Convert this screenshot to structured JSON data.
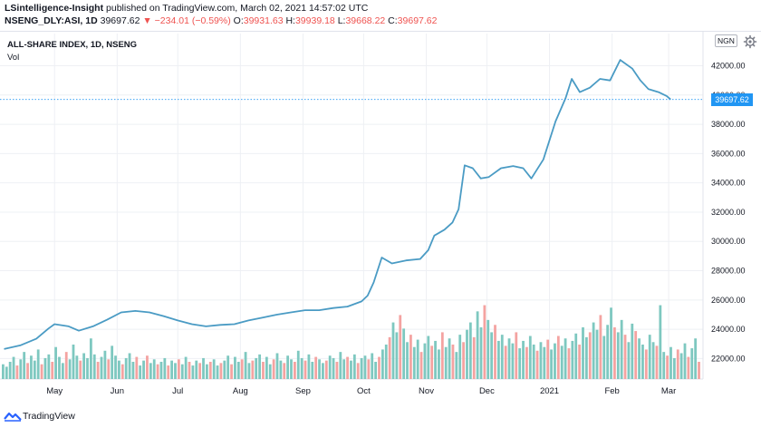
{
  "header": {
    "author": "LSintelligence-Insight",
    "published_text": "published on TradingView.com, March 02, 2021 14:57:02 UTC",
    "symbol": "NSENG_DLY:ASI, 1D",
    "last": "39697.62",
    "change": "−234.01 (−0.59%)",
    "open_label": "O:",
    "open": "39931.63",
    "high_label": "H:",
    "high": "39939.18",
    "low_label": "L:",
    "low": "39668.22",
    "close_label": "C:",
    "close": "39697.62"
  },
  "chart_title": "ALL-SHARE INDEX, 1D, NSENG",
  "vol_label": "Vol",
  "currency": "NGN",
  "price_tag": "39697.62",
  "brand": "TradingView",
  "colors": {
    "line": "#4a9bc4",
    "vol_up": "#7ec8c0",
    "vol_down": "#f4a3a1",
    "price_tag": "#2196f3",
    "grid": "#eef0f4"
  },
  "icons": [
    "gear-icon",
    "tradingview-logo-icon",
    "change-down-icon"
  ],
  "chart_data": {
    "type": "line",
    "ylim": [
      20600,
      44200
    ],
    "yticks": [
      22000,
      24000,
      26000,
      28000,
      30000,
      32000,
      34000,
      36000,
      38000,
      40000,
      42000
    ],
    "ytick_labels": [
      "22000.00",
      "24000.00",
      "26000.00",
      "28000.00",
      "30000.00",
      "32000.00",
      "34000.00",
      "36000.00",
      "38000.00",
      "40000.00",
      "42000.00"
    ],
    "xticks": [
      [
        "2020-05-01",
        "May"
      ],
      [
        "2020-06-01",
        "Jun"
      ],
      [
        "2020-07-01",
        "Jul"
      ],
      [
        "2020-08-01",
        "Aug"
      ],
      [
        "2020-09-01",
        "Sep"
      ],
      [
        "2020-10-01",
        "Oct"
      ],
      [
        "2020-11-01",
        "Nov"
      ],
      [
        "2020-12-01",
        "Dec"
      ],
      [
        "2021-01-01",
        "2021"
      ],
      [
        "2021-02-01",
        "Feb"
      ],
      [
        "2021-03-01",
        "Mar"
      ]
    ],
    "xrange": [
      "2020-04-04",
      "2021-03-18"
    ],
    "last_value": 39697.62,
    "series": [
      {
        "points": [
          [
            "2020-04-06",
            22650
          ],
          [
            "2020-04-14",
            22900
          ],
          [
            "2020-04-22",
            23350
          ],
          [
            "2020-04-28",
            24050
          ],
          [
            "2020-05-01",
            24350
          ],
          [
            "2020-05-08",
            24200
          ],
          [
            "2020-05-13",
            23900
          ],
          [
            "2020-05-20",
            24200
          ],
          [
            "2020-05-27",
            24650
          ],
          [
            "2020-06-03",
            25150
          ],
          [
            "2020-06-10",
            25250
          ],
          [
            "2020-06-17",
            25150
          ],
          [
            "2020-06-24",
            24900
          ],
          [
            "2020-07-01",
            24600
          ],
          [
            "2020-07-08",
            24350
          ],
          [
            "2020-07-15",
            24200
          ],
          [
            "2020-07-22",
            24300
          ],
          [
            "2020-07-29",
            24350
          ],
          [
            "2020-08-05",
            24600
          ],
          [
            "2020-08-12",
            24800
          ],
          [
            "2020-08-19",
            25000
          ],
          [
            "2020-08-26",
            25150
          ],
          [
            "2020-09-02",
            25300
          ],
          [
            "2020-09-09",
            25300
          ],
          [
            "2020-09-16",
            25450
          ],
          [
            "2020-09-23",
            25550
          ],
          [
            "2020-09-30",
            25900
          ],
          [
            "2020-10-03",
            26300
          ],
          [
            "2020-10-06",
            27200
          ],
          [
            "2020-10-10",
            28900
          ],
          [
            "2020-10-15",
            28500
          ],
          [
            "2020-10-22",
            28700
          ],
          [
            "2020-10-29",
            28800
          ],
          [
            "2020-11-02",
            29400
          ],
          [
            "2020-11-05",
            30400
          ],
          [
            "2020-11-10",
            30800
          ],
          [
            "2020-11-14",
            31300
          ],
          [
            "2020-11-17",
            32200
          ],
          [
            "2020-11-20",
            35200
          ],
          [
            "2020-11-24",
            35000
          ],
          [
            "2020-11-28",
            34300
          ],
          [
            "2020-12-02",
            34400
          ],
          [
            "2020-12-08",
            35000
          ],
          [
            "2020-12-14",
            35150
          ],
          [
            "2020-12-19",
            35000
          ],
          [
            "2020-12-23",
            34300
          ],
          [
            "2020-12-29",
            35600
          ],
          [
            "2021-01-04",
            38200
          ],
          [
            "2021-01-09",
            39800
          ],
          [
            "2021-01-12",
            41100
          ],
          [
            "2021-01-16",
            40200
          ],
          [
            "2021-01-21",
            40500
          ],
          [
            "2021-01-26",
            41100
          ],
          [
            "2021-01-31",
            41000
          ],
          [
            "2021-02-05",
            42400
          ],
          [
            "2021-02-11",
            41800
          ],
          [
            "2021-02-15",
            41000
          ],
          [
            "2021-02-19",
            40400
          ],
          [
            "2021-02-24",
            40200
          ],
          [
            "2021-02-28",
            39930
          ],
          [
            "2021-03-02",
            39697.62
          ]
        ]
      }
    ],
    "volume": [
      [
        12,
        1
      ],
      [
        10,
        1
      ],
      [
        14,
        1
      ],
      [
        18,
        1
      ],
      [
        11,
        0
      ],
      [
        16,
        1
      ],
      [
        22,
        1
      ],
      [
        13,
        0
      ],
      [
        19,
        1
      ],
      [
        15,
        1
      ],
      [
        24,
        1
      ],
      [
        12,
        0
      ],
      [
        17,
        1
      ],
      [
        20,
        1
      ],
      [
        14,
        0
      ],
      [
        26,
        1
      ],
      [
        18,
        1
      ],
      [
        13,
        1
      ],
      [
        22,
        0
      ],
      [
        16,
        1
      ],
      [
        28,
        1
      ],
      [
        19,
        1
      ],
      [
        15,
        0
      ],
      [
        21,
        1
      ],
      [
        17,
        1
      ],
      [
        33,
        1
      ],
      [
        20,
        1
      ],
      [
        14,
        0
      ],
      [
        18,
        1
      ],
      [
        23,
        1
      ],
      [
        16,
        0
      ],
      [
        27,
        1
      ],
      [
        19,
        1
      ],
      [
        15,
        1
      ],
      [
        12,
        0
      ],
      [
        17,
        1
      ],
      [
        21,
        1
      ],
      [
        14,
        1
      ],
      [
        18,
        0
      ],
      [
        11,
        1
      ],
      [
        15,
        1
      ],
      [
        19,
        0
      ],
      [
        13,
        1
      ],
      [
        16,
        1
      ],
      [
        12,
        0
      ],
      [
        14,
        1
      ],
      [
        17,
        1
      ],
      [
        11,
        0
      ],
      [
        15,
        1
      ],
      [
        13,
        1
      ],
      [
        16,
        0
      ],
      [
        12,
        1
      ],
      [
        18,
        1
      ],
      [
        14,
        0
      ],
      [
        11,
        1
      ],
      [
        15,
        1
      ],
      [
        13,
        0
      ],
      [
        17,
        1
      ],
      [
        12,
        1
      ],
      [
        14,
        0
      ],
      [
        16,
        1
      ],
      [
        11,
        1
      ],
      [
        13,
        0
      ],
      [
        15,
        1
      ],
      [
        19,
        1
      ],
      [
        12,
        0
      ],
      [
        18,
        1
      ],
      [
        14,
        1
      ],
      [
        16,
        0
      ],
      [
        22,
        1
      ],
      [
        13,
        1
      ],
      [
        15,
        0
      ],
      [
        17,
        1
      ],
      [
        20,
        1
      ],
      [
        14,
        0
      ],
      [
        18,
        1
      ],
      [
        12,
        1
      ],
      [
        16,
        0
      ],
      [
        21,
        1
      ],
      [
        15,
        1
      ],
      [
        13,
        0
      ],
      [
        19,
        1
      ],
      [
        16,
        1
      ],
      [
        14,
        0
      ],
      [
        23,
        1
      ],
      [
        17,
        1
      ],
      [
        15,
        0
      ],
      [
        20,
        1
      ],
      [
        14,
        1
      ],
      [
        18,
        0
      ],
      [
        16,
        1
      ],
      [
        13,
        1
      ],
      [
        15,
        0
      ],
      [
        19,
        1
      ],
      [
        17,
        1
      ],
      [
        14,
        0
      ],
      [
        22,
        1
      ],
      [
        16,
        1
      ],
      [
        18,
        0
      ],
      [
        15,
        1
      ],
      [
        20,
        1
      ],
      [
        13,
        0
      ],
      [
        17,
        1
      ],
      [
        19,
        1
      ],
      [
        16,
        0
      ],
      [
        21,
        1
      ],
      [
        14,
        1
      ],
      [
        18,
        0
      ],
      [
        24,
        1
      ],
      [
        28,
        1
      ],
      [
        34,
        0
      ],
      [
        46,
        1
      ],
      [
        38,
        1
      ],
      [
        52,
        0
      ],
      [
        41,
        1
      ],
      [
        30,
        1
      ],
      [
        36,
        0
      ],
      [
        26,
        1
      ],
      [
        32,
        1
      ],
      [
        22,
        0
      ],
      [
        29,
        1
      ],
      [
        35,
        1
      ],
      [
        27,
        0
      ],
      [
        31,
        1
      ],
      [
        24,
        1
      ],
      [
        38,
        0
      ],
      [
        26,
        1
      ],
      [
        33,
        1
      ],
      [
        28,
        0
      ],
      [
        22,
        1
      ],
      [
        36,
        1
      ],
      [
        30,
        0
      ],
      [
        40,
        1
      ],
      [
        46,
        1
      ],
      [
        34,
        0
      ],
      [
        55,
        1
      ],
      [
        42,
        1
      ],
      [
        60,
        0
      ],
      [
        48,
        1
      ],
      [
        38,
        1
      ],
      [
        44,
        0
      ],
      [
        31,
        1
      ],
      [
        36,
        1
      ],
      [
        27,
        0
      ],
      [
        33,
        1
      ],
      [
        29,
        1
      ],
      [
        38,
        0
      ],
      [
        25,
        1
      ],
      [
        31,
        1
      ],
      [
        26,
        0
      ],
      [
        35,
        1
      ],
      [
        28,
        1
      ],
      [
        23,
        0
      ],
      [
        30,
        1
      ],
      [
        26,
        1
      ],
      [
        32,
        0
      ],
      [
        24,
        1
      ],
      [
        29,
        1
      ],
      [
        35,
        0
      ],
      [
        27,
        1
      ],
      [
        33,
        1
      ],
      [
        25,
        0
      ],
      [
        31,
        1
      ],
      [
        37,
        1
      ],
      [
        28,
        0
      ],
      [
        42,
        1
      ],
      [
        34,
        1
      ],
      [
        38,
        0
      ],
      [
        46,
        1
      ],
      [
        40,
        1
      ],
      [
        52,
        0
      ],
      [
        35,
        1
      ],
      [
        44,
        1
      ],
      [
        58,
        1
      ],
      [
        42,
        0
      ],
      [
        38,
        1
      ],
      [
        48,
        1
      ],
      [
        36,
        0
      ],
      [
        30,
        1
      ],
      [
        45,
        1
      ],
      [
        39,
        0
      ],
      [
        33,
        1
      ],
      [
        28,
        1
      ],
      [
        24,
        0
      ],
      [
        36,
        1
      ],
      [
        30,
        1
      ],
      [
        27,
        0
      ],
      [
        60,
        1
      ],
      [
        22,
        1
      ],
      [
        19,
        0
      ],
      [
        26,
        1
      ],
      [
        17,
        1
      ],
      [
        24,
        0
      ],
      [
        21,
        1
      ],
      [
        29,
        1
      ],
      [
        18,
        0
      ],
      [
        25,
        1
      ],
      [
        33,
        1
      ],
      [
        14,
        0
      ]
    ]
  }
}
